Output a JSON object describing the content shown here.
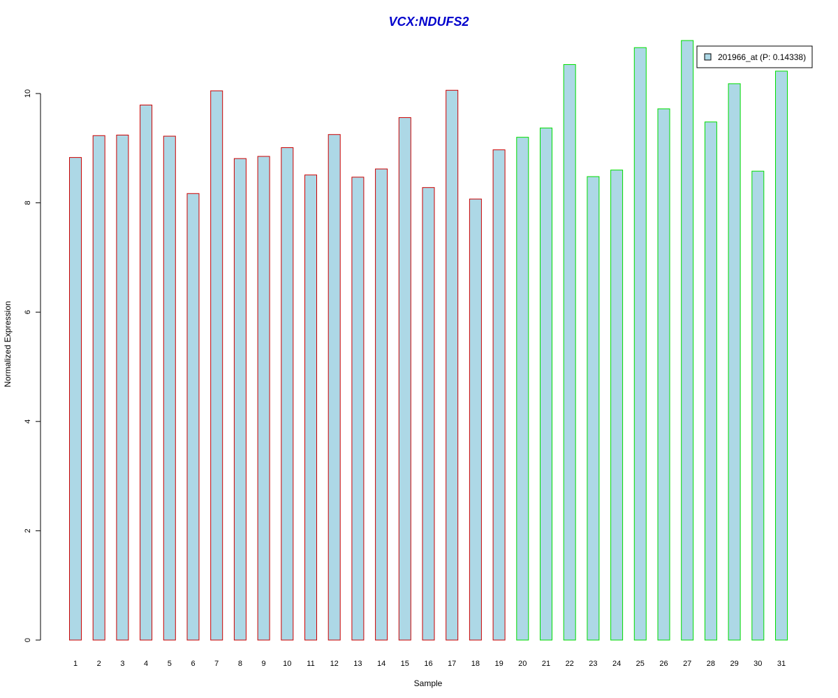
{
  "chart_data": {
    "type": "bar",
    "title": "VCX:NDUFS2",
    "xlabel": "Sample",
    "ylabel": "Normalized Expression",
    "ylim": [
      0,
      11
    ],
    "yticks": [
      0,
      2,
      4,
      6,
      8,
      10
    ],
    "categories": [
      "1",
      "2",
      "3",
      "4",
      "5",
      "6",
      "7",
      "8",
      "9",
      "10",
      "11",
      "12",
      "13",
      "14",
      "15",
      "16",
      "17",
      "18",
      "19",
      "20",
      "21",
      "22",
      "23",
      "24",
      "25",
      "26",
      "27",
      "28",
      "29",
      "30",
      "31"
    ],
    "series": [
      {
        "name": "201966_at (P: 0.14338)",
        "values": [
          8.83,
          9.23,
          9.24,
          9.79,
          9.22,
          8.17,
          10.05,
          8.81,
          8.85,
          9.01,
          8.51,
          9.25,
          8.47,
          8.62,
          9.56,
          8.28,
          10.06,
          8.07,
          8.97,
          9.2,
          9.37,
          10.53,
          8.48,
          8.6,
          10.84,
          9.72,
          10.97,
          9.48,
          10.18,
          8.58,
          10.41
        ]
      }
    ],
    "groups": [
      {
        "samples": [
          1,
          19
        ],
        "border_color": "#cc0000"
      },
      {
        "samples": [
          20,
          31
        ],
        "border_color": "#00dd00"
      }
    ],
    "bar_fill": "#add8e6",
    "grid": false,
    "legend_position": "top-right"
  }
}
